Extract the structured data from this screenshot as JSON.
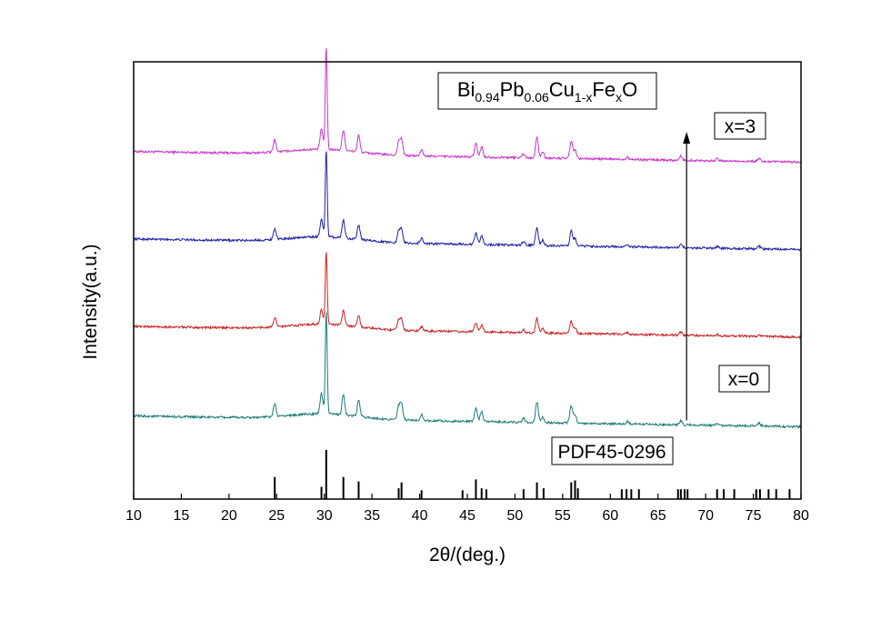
{
  "chart_data": {
    "type": "line",
    "xlabel": "2θ/(deg.)",
    "ylabel": "Intensity(a.u.)",
    "xlim": [
      10,
      80
    ],
    "xticks": [
      10,
      15,
      20,
      25,
      30,
      35,
      40,
      45,
      50,
      55,
      60,
      65,
      70,
      75,
      80
    ],
    "grid": false,
    "formula": {
      "base1": "Bi",
      "sub1": "0.94",
      "base2": "Pb",
      "sub2": "0.06",
      "base3": "Cu",
      "sub3": "1-x",
      "base4": "Fe",
      "sub4": "x",
      "base5": "O"
    },
    "annotations": {
      "top_series_label": "x=3",
      "bottom_series_label": "x=0",
      "reference_label": "PDF45-0296"
    },
    "peaks": [
      {
        "x": 24.8,
        "h": 0.12
      },
      {
        "x": 29.7,
        "h": 0.2
      },
      {
        "x": 30.2,
        "h": 1.0
      },
      {
        "x": 32.0,
        "h": 0.2
      },
      {
        "x": 33.6,
        "h": 0.16
      },
      {
        "x": 37.8,
        "h": 0.13
      },
      {
        "x": 38.1,
        "h": 0.15
      },
      {
        "x": 40.2,
        "h": 0.06
      },
      {
        "x": 45.9,
        "h": 0.13
      },
      {
        "x": 46.5,
        "h": 0.1
      },
      {
        "x": 50.9,
        "h": 0.04
      },
      {
        "x": 52.3,
        "h": 0.2
      },
      {
        "x": 52.9,
        "h": 0.06
      },
      {
        "x": 55.9,
        "h": 0.17
      },
      {
        "x": 56.3,
        "h": 0.08
      },
      {
        "x": 61.8,
        "h": 0.025
      },
      {
        "x": 67.4,
        "h": 0.04
      },
      {
        "x": 71.2,
        "h": 0.02
      },
      {
        "x": 75.6,
        "h": 0.03
      }
    ],
    "series": [
      {
        "color": "#cc33cc",
        "baseline": 0.795,
        "scale": 0.56
      },
      {
        "color": "#1f1fa8",
        "baseline": 0.595,
        "scale": 0.48
      },
      {
        "color": "#cc2222",
        "baseline": 0.395,
        "scale": 0.4
      },
      {
        "color": "#1a7a78",
        "baseline": 0.19,
        "scale": 0.56
      }
    ],
    "reference_lines": [
      {
        "x": 24.8,
        "h": 0.45
      },
      {
        "x": 29.7,
        "h": 0.25
      },
      {
        "x": 30.2,
        "h": 1.0
      },
      {
        "x": 32.0,
        "h": 0.45
      },
      {
        "x": 33.6,
        "h": 0.36
      },
      {
        "x": 37.8,
        "h": 0.22
      },
      {
        "x": 38.1,
        "h": 0.34
      },
      {
        "x": 40.2,
        "h": 0.18
      },
      {
        "x": 44.5,
        "h": 0.18
      },
      {
        "x": 45.9,
        "h": 0.4
      },
      {
        "x": 46.5,
        "h": 0.22
      },
      {
        "x": 47.0,
        "h": 0.2
      },
      {
        "x": 50.9,
        "h": 0.2
      },
      {
        "x": 52.3,
        "h": 0.34
      },
      {
        "x": 53.0,
        "h": 0.22
      },
      {
        "x": 55.9,
        "h": 0.34
      },
      {
        "x": 56.3,
        "h": 0.38
      },
      {
        "x": 56.6,
        "h": 0.22
      },
      {
        "x": 61.2,
        "h": 0.2
      },
      {
        "x": 61.7,
        "h": 0.2
      },
      {
        "x": 62.2,
        "h": 0.2
      },
      {
        "x": 63.0,
        "h": 0.2
      },
      {
        "x": 67.1,
        "h": 0.2
      },
      {
        "x": 67.4,
        "h": 0.2
      },
      {
        "x": 67.8,
        "h": 0.2
      },
      {
        "x": 68.1,
        "h": 0.2
      },
      {
        "x": 71.2,
        "h": 0.2
      },
      {
        "x": 71.9,
        "h": 0.2
      },
      {
        "x": 73.0,
        "h": 0.2
      },
      {
        "x": 75.3,
        "h": 0.2
      },
      {
        "x": 75.7,
        "h": 0.2
      },
      {
        "x": 76.6,
        "h": 0.2
      },
      {
        "x": 77.4,
        "h": 0.2
      },
      {
        "x": 78.8,
        "h": 0.2
      }
    ],
    "arrow": {
      "x": 68.0,
      "from": 0.18,
      "to": 0.84
    }
  }
}
